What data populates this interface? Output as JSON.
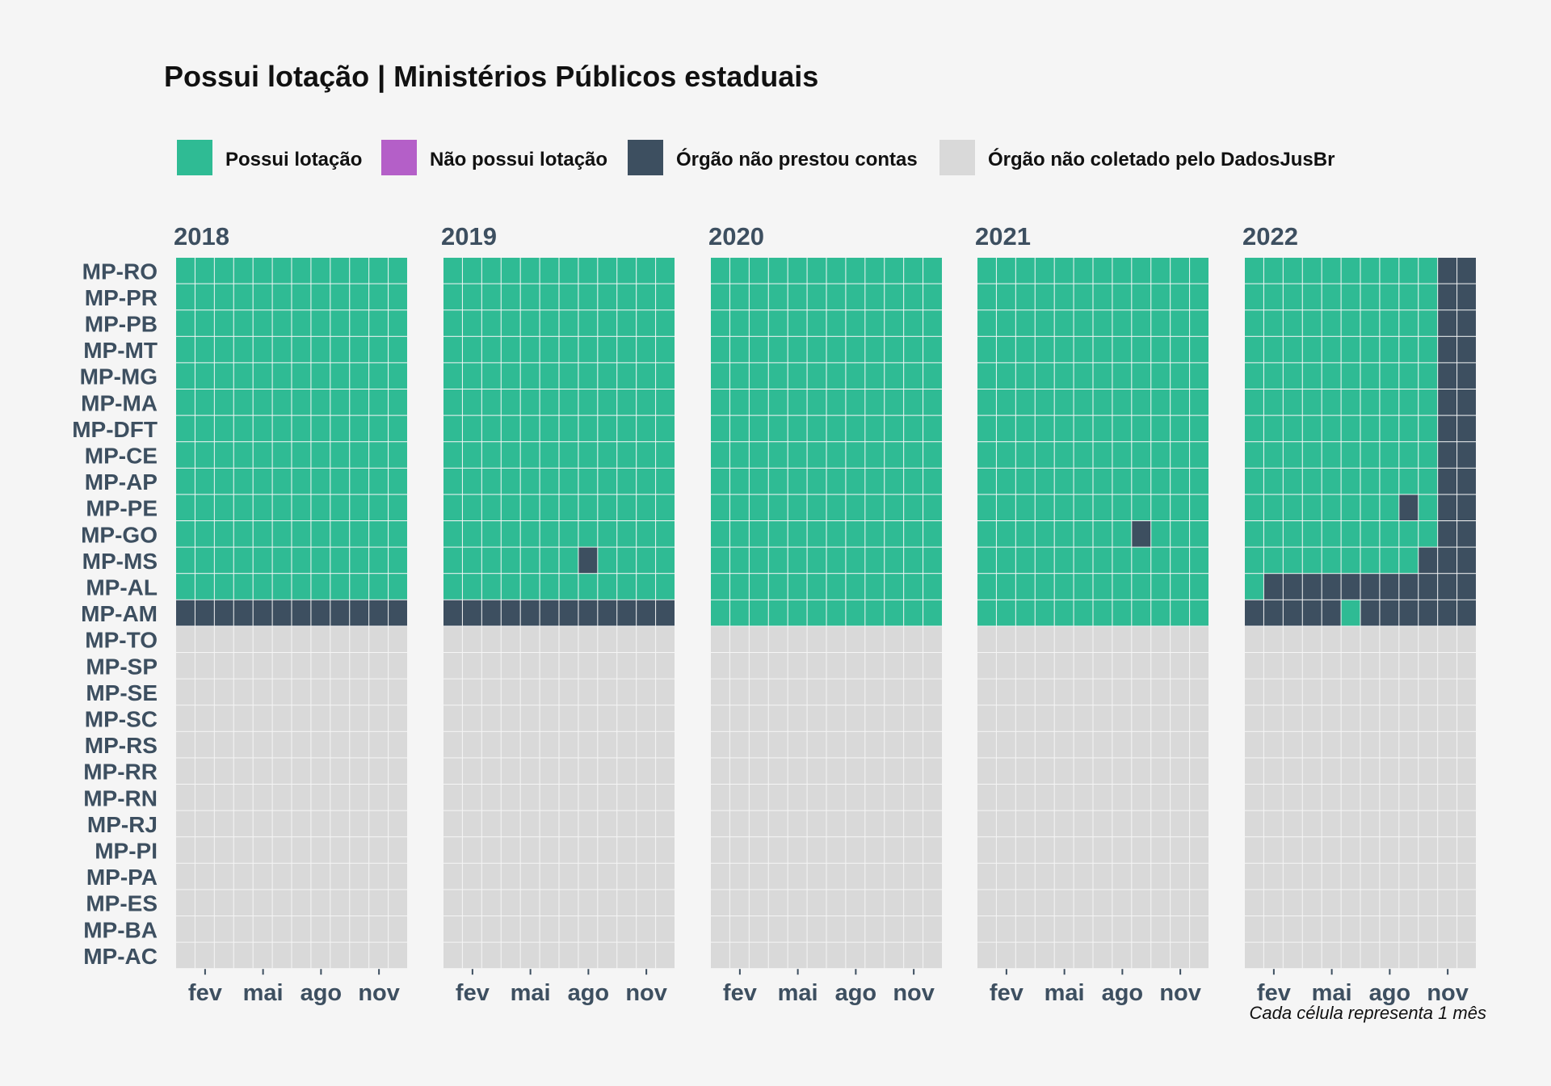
{
  "chart_data": {
    "type": "heatmap",
    "title": "Possui lotação | Ministérios Públicos estaduais",
    "caption": "Cada célula representa 1 mês",
    "legend": [
      {
        "key": "P",
        "label": "Possui lotação",
        "color": "#2fbb94"
      },
      {
        "key": "N",
        "label": "Não possui lotação",
        "color": "#b45fc8"
      },
      {
        "key": "D",
        "label": "Órgão não prestou contas",
        "color": "#3d4f60"
      },
      {
        "key": "G",
        "label": "Órgão não coletado pelo DadosJusBr",
        "color": "#d9d9d9"
      }
    ],
    "legend_position": "top",
    "years": [
      "2018",
      "2019",
      "2020",
      "2021",
      "2022"
    ],
    "months_per_year": 12,
    "x_ticks": [
      {
        "label": "fev",
        "month": 2
      },
      {
        "label": "mai",
        "month": 5
      },
      {
        "label": "ago",
        "month": 8
      },
      {
        "label": "nov",
        "month": 11
      }
    ],
    "rows": [
      "MP-RO",
      "MP-PR",
      "MP-PB",
      "MP-MT",
      "MP-MG",
      "MP-MA",
      "MP-DFT",
      "MP-CE",
      "MP-AP",
      "MP-PE",
      "MP-GO",
      "MP-MS",
      "MP-AL",
      "MP-AM",
      "MP-TO",
      "MP-SP",
      "MP-SE",
      "MP-SC",
      "MP-RS",
      "MP-RR",
      "MP-RN",
      "MP-RJ",
      "MP-PI",
      "MP-PA",
      "MP-ES",
      "MP-BA",
      "MP-AC"
    ],
    "status": {
      "2018": [
        "PPPPPPPPPPPP",
        "PPPPPPPPPPPP",
        "PPPPPPPPPPPP",
        "PPPPPPPPPPPP",
        "PPPPPPPPPPPP",
        "PPPPPPPPPPPP",
        "PPPPPPPPPPPP",
        "PPPPPPPPPPPP",
        "PPPPPPPPPPPP",
        "PPPPPPPPPPPP",
        "PPPPPPPPPPPP",
        "PPPPPPPPPPPP",
        "PPPPPPPPPPPP",
        "DDDDDDDDDDDD",
        "GGGGGGGGGGGG",
        "GGGGGGGGGGGG",
        "GGGGGGGGGGGG",
        "GGGGGGGGGGGG",
        "GGGGGGGGGGGG",
        "GGGGGGGGGGGG",
        "GGGGGGGGGGGG",
        "GGGGGGGGGGGG",
        "GGGGGGGGGGGG",
        "GGGGGGGGGGGG",
        "GGGGGGGGGGGG",
        "GGGGGGGGGGGG",
        "GGGGGGGGGGGG"
      ],
      "2019": [
        "PPPPPPPPPPPP",
        "PPPPPPPPPPPP",
        "PPPPPPPPPPPP",
        "PPPPPPPPPPPP",
        "PPPPPPPPPPPP",
        "PPPPPPPPPPPP",
        "PPPPPPPPPPPP",
        "PPPPPPPPPPPP",
        "PPPPPPPPPPPP",
        "PPPPPPPPPPPP",
        "PPPPPPPPPPPP",
        "PPPPPPPDPPPP",
        "PPPPPPPPPPPP",
        "DDDDDDDDDDDD",
        "GGGGGGGGGGGG",
        "GGGGGGGGGGGG",
        "GGGGGGGGGGGG",
        "GGGGGGGGGGGG",
        "GGGGGGGGGGGG",
        "GGGGGGGGGGGG",
        "GGGGGGGGGGGG",
        "GGGGGGGGGGGG",
        "GGGGGGGGGGGG",
        "GGGGGGGGGGGG",
        "GGGGGGGGGGGG",
        "GGGGGGGGGGGG",
        "GGGGGGGGGGGG"
      ],
      "2020": [
        "PPPPPPPPPPPP",
        "PPPPPPPPPPPP",
        "PPPPPPPPPPPP",
        "PPPPPPPPPPPP",
        "PPPPPPPPPPPP",
        "PPPPPPPPPPPP",
        "PPPPPPPPPPPP",
        "PPPPPPPPPPPP",
        "PPPPPPPPPPPP",
        "PPPPPPPPPPPP",
        "PPPPPPPPPPPP",
        "PPPPPPPPPPPP",
        "PPPPPPPPPPPP",
        "PPPPPPPPPPPP",
        "GGGGGGGGGGGG",
        "GGGGGGGGGGGG",
        "GGGGGGGGGGGG",
        "GGGGGGGGGGGG",
        "GGGGGGGGGGGG",
        "GGGGGGGGGGGG",
        "GGGGGGGGGGGG",
        "GGGGGGGGGGGG",
        "GGGGGGGGGGGG",
        "GGGGGGGGGGGG",
        "GGGGGGGGGGGG",
        "GGGGGGGGGGGG",
        "GGGGGGGGGGGG"
      ],
      "2021": [
        "PPPPPPPPPPPP",
        "PPPPPPPPPPPP",
        "PPPPPPPPPPPP",
        "PPPPPPPPPPPP",
        "PPPPPPPPPPPP",
        "PPPPPPPPPPPP",
        "PPPPPPPPPPPP",
        "PPPPPPPPPPPP",
        "PPPPPPPPPPPP",
        "PPPPPPPPPPPP",
        "PPPPPPPPDPPP",
        "PPPPPPPPPPPP",
        "PPPPPPPPPPPP",
        "PPPPPPPPPPPP",
        "GGGGGGGGGGGG",
        "GGGGGGGGGGGG",
        "GGGGGGGGGGGG",
        "GGGGGGGGGGGG",
        "GGGGGGGGGGGG",
        "GGGGGGGGGGGG",
        "GGGGGGGGGGGG",
        "GGGGGGGGGGGG",
        "GGGGGGGGGGGG",
        "GGGGGGGGGGGG",
        "GGGGGGGGGGGG",
        "GGGGGGGGGGGG",
        "GGGGGGGGGGGG"
      ],
      "2022": [
        "PPPPPPPPPPDD",
        "PPPPPPPPPPDD",
        "PPPPPPPPPPDD",
        "PPPPPPPPPPDD",
        "PPPPPPPPPPDD",
        "PPPPPPPPPPDD",
        "PPPPPPPPPPDD",
        "PPPPPPPPPPDD",
        "PPPPPPPPPPDD",
        "PPPPPPPPDPDD",
        "PPPPPPPPPPDD",
        "PPPPPPPPPDDD",
        "PDDDDDDDDDDD",
        "DDDDDPDDDDDD",
        "GGGGGGGGGGGG",
        "GGGGGGGGGGGG",
        "GGGGGGGGGGGG",
        "GGGGGGGGGGGG",
        "GGGGGGGGGGGG",
        "GGGGGGGGGGGG",
        "GGGGGGGGGGGG",
        "GGGGGGGGGGGG",
        "GGGGGGGGGGGG",
        "GGGGGGGGGGGG",
        "GGGGGGGGGGGG",
        "GGGGGGGGGGGG",
        "GGGGGGGGGGGG"
      ]
    }
  }
}
